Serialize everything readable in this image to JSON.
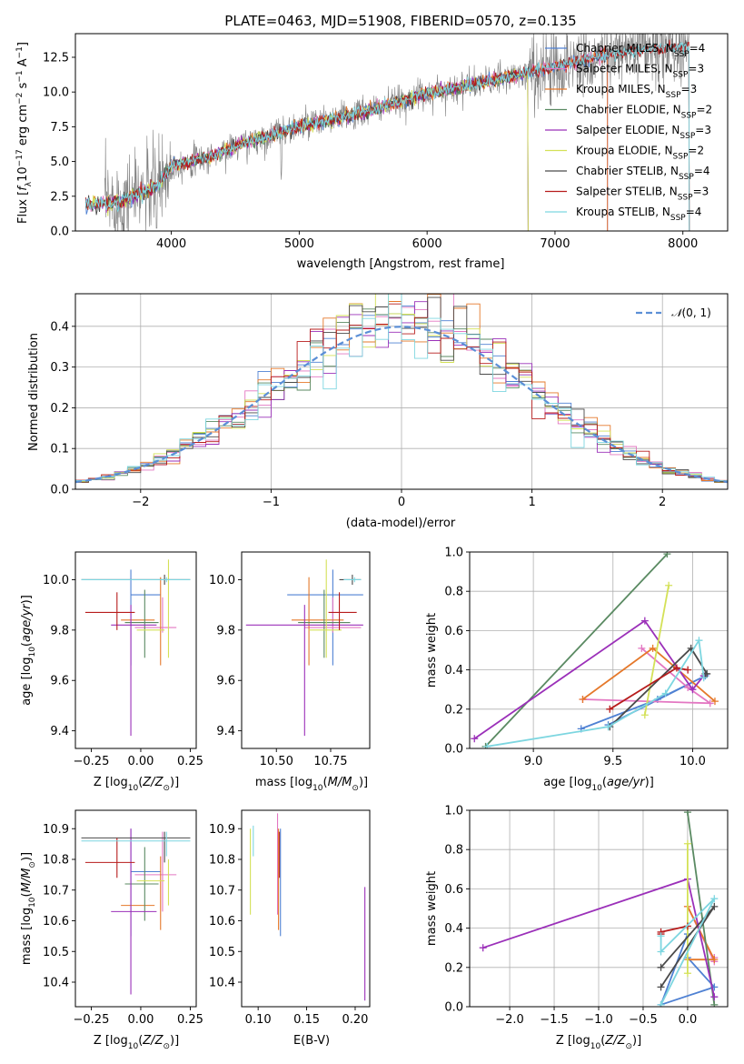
{
  "chart_data": [
    {
      "id": "spectrum",
      "type": "line",
      "title": "PLATE=0463, MJD=51908, FIBERID=0570, z=0.135",
      "xlabel": "wavelength [Angstrom, rest frame]",
      "ylabel": "Flux [f_λ 10^-17 erg cm^-2 s^-1 A^-1]",
      "ylabel_parts": {
        "pre": "Flux [",
        "f": "f",
        "fsub": "λ",
        "ten": "10",
        "e1": "−17",
        "mid1": " erg cm",
        "e2": "−2",
        "mid2": " s",
        "e3": "−1",
        "mid3": " A",
        "e4": "−1",
        "post": "]"
      },
      "xlim": [
        3250,
        8350
      ],
      "ylim": [
        0,
        14.2
      ],
      "xticks": [
        4000,
        5000,
        6000,
        7000,
        8000
      ],
      "yticks": [
        0.0,
        2.5,
        5.0,
        7.5,
        10.0,
        12.5
      ],
      "ytick_labels": [
        "0.0",
        "2.5",
        "5.0",
        "7.5",
        "10.0",
        "12.5"
      ],
      "legend_position": "upper-right",
      "data_color": "#808080",
      "data_trend": {
        "x": [
          3330,
          3600,
          3900,
          4000,
          4300,
          4500,
          5000,
          5500,
          6000,
          6500,
          7000,
          7300,
          7500,
          7800,
          8050
        ],
        "y": [
          1.9,
          2.1,
          3.3,
          4.7,
          5.3,
          6.1,
          7.5,
          8.5,
          9.9,
          10.8,
          11.8,
          12.5,
          12.8,
          13.1,
          13.3
        ]
      },
      "series": [
        {
          "name": "Chabrier MILES",
          "nssp": "4",
          "color": "#4f81d3",
          "xmax": 7410
        },
        {
          "name": "Salpeter MILES",
          "nssp": "3",
          "color": "#e377c2",
          "xmax": 7410
        },
        {
          "name": "Kroupa MILES",
          "nssp": "3",
          "color": "#e5782a",
          "xmax": 7410
        },
        {
          "name": "Chabrier ELODIE",
          "nssp": "2",
          "color": "#5a8a62",
          "xmax": 6790
        },
        {
          "name": "Salpeter ELODIE",
          "nssp": "3",
          "color": "#9b30b9",
          "xmax": 6790
        },
        {
          "name": "Kroupa ELODIE",
          "nssp": "2",
          "color": "#d4e157",
          "xmax": 6790
        },
        {
          "name": "Chabrier STELIB",
          "nssp": "4",
          "color": "#4a4a4a",
          "xmax": 8050
        },
        {
          "name": "Salpeter STELIB",
          "nssp": "3",
          "color": "#b71c1c",
          "xmax": 8050
        },
        {
          "name": "Kroupa STELIB",
          "nssp": "4",
          "color": "#7dd6e0",
          "xmax": 8050
        }
      ]
    },
    {
      "id": "residuals",
      "type": "histogram",
      "xlabel": "(data-model)/error",
      "ylabel": "Normed distribution",
      "xlim": [
        -2.5,
        2.5
      ],
      "ylim": [
        0,
        0.48
      ],
      "xticks": [
        -2,
        -1,
        0,
        1,
        2
      ],
      "xtick_labels": [
        "−2",
        "−1",
        "0",
        "1",
        "2"
      ],
      "yticks": [
        0.0,
        0.1,
        0.2,
        0.3,
        0.4
      ],
      "ytick_labels": [
        "0.0",
        "0.1",
        "0.2",
        "0.3",
        "0.4"
      ],
      "grid": true,
      "bin_width": 0.1,
      "reference": {
        "label": "N(0,1)",
        "label_script": "𝒩",
        "label_args": "(0, 1)",
        "color": "#5b8fd6",
        "style": "dashed"
      },
      "legend_position": "upper-right"
    },
    {
      "id": "age_vs_Z",
      "type": "errorbar",
      "xlabel": "Z [log10(Z/Z⊙)]",
      "ylabel": "age [log10(age/yr)]",
      "xlim": [
        -0.33,
        0.28
      ],
      "ylim": [
        9.33,
        10.11
      ],
      "xticks": [
        -0.25,
        0.0,
        0.25
      ],
      "xtick_labels": [
        "−0.25",
        "0.00",
        "0.25"
      ],
      "yticks": [
        9.4,
        9.6,
        9.8,
        10.0
      ],
      "ytick_labels": [
        "9.4",
        "9.6",
        "9.8",
        "10.0"
      ],
      "points": [
        {
          "color": "#4f81d3",
          "x": [
            -0.05,
            0.1,
            -0.05
          ],
          "y": [
            9.66,
            9.94,
            10.04
          ]
        },
        {
          "color": "#e377c2",
          "x": [
            -0.03,
            0.18,
            0.11
          ],
          "y": [
            9.79,
            9.81,
            9.93
          ]
        },
        {
          "color": "#e5782a",
          "x": [
            -0.1,
            0.07,
            0.1
          ],
          "y": [
            9.66,
            9.84,
            10.01
          ]
        },
        {
          "color": "#5a8a62",
          "x": [
            -0.08,
            0.09,
            0.02
          ],
          "y": [
            9.69,
            9.83,
            9.96
          ]
        },
        {
          "color": "#9b30b9",
          "x": [
            -0.15,
            0.08,
            -0.05
          ],
          "y": [
            9.38,
            9.82,
            9.9
          ]
        },
        {
          "color": "#d4e157",
          "x": [
            -0.02,
            0.12,
            0.14
          ],
          "y": [
            9.69,
            9.8,
            10.08
          ]
        },
        {
          "color": "#4a4a4a",
          "x": [
            -0.3,
            0.25,
            0.12
          ],
          "y": [
            9.98,
            10.0,
            10.02
          ]
        },
        {
          "color": "#b71c1c",
          "x": [
            -0.28,
            -0.03,
            -0.12
          ],
          "y": [
            9.8,
            9.87,
            9.95
          ]
        },
        {
          "color": "#7dd6e0",
          "x": [
            -0.3,
            0.25,
            0.13
          ],
          "y": [
            9.99,
            10.0,
            10.01
          ]
        }
      ]
    },
    {
      "id": "age_vs_mass",
      "type": "errorbar",
      "xlabel": "mass [log10(M/M⊙)]",
      "xlim": [
        10.34,
        10.93
      ],
      "ylim": [
        9.33,
        10.11
      ],
      "xticks": [
        10.5,
        10.75
      ],
      "xtick_labels": [
        "10.50",
        "10.75"
      ],
      "yticks": [
        9.4,
        9.6,
        9.8,
        10.0
      ],
      "ytick_labels": [
        "9.4",
        "9.6",
        "9.8",
        "10.0"
      ],
      "points": [
        {
          "color": "#4f81d3",
          "x": [
            10.55,
            10.9,
            10.76
          ],
          "y": [
            9.66,
            9.94,
            10.04
          ]
        },
        {
          "color": "#e377c2",
          "x": [
            10.63,
            10.89,
            10.76
          ],
          "y": [
            9.79,
            9.81,
            9.93
          ]
        },
        {
          "color": "#e5782a",
          "x": [
            10.57,
            10.81,
            10.65
          ],
          "y": [
            9.66,
            9.84,
            10.01
          ]
        },
        {
          "color": "#5a8a62",
          "x": [
            10.6,
            10.84,
            10.72
          ],
          "y": [
            9.69,
            9.83,
            9.96
          ]
        },
        {
          "color": "#9b30b9",
          "x": [
            10.36,
            10.9,
            10.63
          ],
          "y": [
            9.38,
            9.82,
            9.9
          ]
        },
        {
          "color": "#d4e157",
          "x": [
            10.65,
            10.8,
            10.73
          ],
          "y": [
            9.69,
            9.8,
            10.08
          ]
        },
        {
          "color": "#4a4a4a",
          "x": [
            10.79,
            10.89,
            10.85
          ],
          "y": [
            9.98,
            10.0,
            10.02
          ]
        },
        {
          "color": "#b71c1c",
          "x": [
            10.74,
            10.87,
            10.79
          ],
          "y": [
            9.8,
            9.87,
            9.95
          ]
        },
        {
          "color": "#7dd6e0",
          "x": [
            10.81,
            10.89,
            10.86
          ],
          "y": [
            9.99,
            10.0,
            10.01
          ]
        }
      ]
    },
    {
      "id": "weight_vs_age",
      "type": "line",
      "xlabel": "age [log10(age/yr)]",
      "ylabel": "mass weight",
      "xlim": [
        8.6,
        10.22
      ],
      "ylim": [
        0,
        1.0
      ],
      "xticks": [
        9.0,
        9.5,
        10.0
      ],
      "xtick_labels": [
        "9.0",
        "9.5",
        "10.0"
      ],
      "yticks": [
        0.0,
        0.2,
        0.4,
        0.6,
        0.8,
        1.0
      ],
      "ytick_labels": [
        "0.0",
        "0.2",
        "0.4",
        "0.6",
        "0.8",
        "1.0"
      ],
      "grid": true,
      "series": [
        {
          "color": "#4f81d3",
          "x": [
            9.3,
            9.78,
            10.08,
            9.47
          ],
          "y": [
            0.1,
            0.25,
            0.37,
            0.12
          ]
        },
        {
          "color": "#e377c2",
          "x": [
            9.68,
            9.97,
            10.11,
            9.31
          ],
          "y": [
            0.51,
            0.31,
            0.23,
            0.25
          ]
        },
        {
          "color": "#e5782a",
          "x": [
            9.31,
            9.75,
            10.14
          ],
          "y": [
            0.25,
            0.51,
            0.24
          ]
        },
        {
          "color": "#5a8a62",
          "x": [
            8.7,
            9.84
          ],
          "y": [
            0.01,
            0.99
          ]
        },
        {
          "color": "#9b30b9",
          "x": [
            8.63,
            9.7,
            10.0,
            10.07
          ],
          "y": [
            0.05,
            0.65,
            0.3,
            0.37
          ]
        },
        {
          "color": "#d4e157",
          "x": [
            9.7,
            9.85
          ],
          "y": [
            0.17,
            0.83
          ]
        },
        {
          "color": "#4a4a4a",
          "x": [
            9.48,
            9.99,
            10.09,
            10.08
          ],
          "y": [
            0.11,
            0.51,
            0.38,
            0.38
          ]
        },
        {
          "color": "#b71c1c",
          "x": [
            9.48,
            9.9,
            9.97
          ],
          "y": [
            0.2,
            0.41,
            0.4
          ]
        },
        {
          "color": "#7dd6e0",
          "x": [
            8.71,
            9.47,
            9.83,
            10.04,
            10.07
          ],
          "y": [
            0.01,
            0.11,
            0.28,
            0.55,
            0.36
          ]
        }
      ]
    },
    {
      "id": "mass_vs_Z",
      "type": "errorbar",
      "xlabel": "Z [log10(Z/Z⊙)]",
      "ylabel": "mass [log10(M/M⊙)]",
      "xlim": [
        -0.33,
        0.28
      ],
      "ylim": [
        10.32,
        10.96
      ],
      "xticks": [
        -0.25,
        0.0,
        0.25
      ],
      "xtick_labels": [
        "−0.25",
        "0.00",
        "0.25"
      ],
      "yticks": [
        10.4,
        10.5,
        10.6,
        10.7,
        10.8,
        10.9
      ],
      "ytick_labels": [
        "10.4",
        "10.5",
        "10.6",
        "10.7",
        "10.8",
        "10.9"
      ],
      "points": [
        {
          "color": "#4f81d3",
          "x": [
            -0.05,
            0.1,
            -0.05
          ],
          "y": [
            10.55,
            10.76,
            10.9
          ]
        },
        {
          "color": "#e377c2",
          "x": [
            -0.03,
            0.18,
            0.11
          ],
          "y": [
            10.63,
            10.75,
            10.89
          ]
        },
        {
          "color": "#e5782a",
          "x": [
            -0.1,
            0.07,
            0.1
          ],
          "y": [
            10.57,
            10.65,
            10.81
          ]
        },
        {
          "color": "#5a8a62",
          "x": [
            -0.08,
            0.09,
            0.02
          ],
          "y": [
            10.6,
            10.72,
            10.84
          ]
        },
        {
          "color": "#9b30b9",
          "x": [
            -0.15,
            0.08,
            -0.05
          ],
          "y": [
            10.36,
            10.63,
            10.9
          ]
        },
        {
          "color": "#d4e157",
          "x": [
            -0.02,
            0.12,
            0.14
          ],
          "y": [
            10.65,
            10.73,
            10.8
          ]
        },
        {
          "color": "#4a4a4a",
          "x": [
            -0.3,
            0.25,
            0.12
          ],
          "y": [
            10.79,
            10.87,
            10.89
          ]
        },
        {
          "color": "#b71c1c",
          "x": [
            -0.28,
            -0.03,
            -0.12
          ],
          "y": [
            10.74,
            10.79,
            10.87
          ]
        },
        {
          "color": "#7dd6e0",
          "x": [
            -0.3,
            0.25,
            0.13
          ],
          "y": [
            10.81,
            10.86,
            10.89
          ]
        }
      ]
    },
    {
      "id": "mass_vs_ebv",
      "type": "errorbar",
      "xlabel": "E(B-V)",
      "xlim": [
        0.083,
        0.215
      ],
      "ylim": [
        10.32,
        10.96
      ],
      "xticks": [
        0.1,
        0.15,
        0.2
      ],
      "xtick_labels": [
        "0.10",
        "0.15",
        "0.20"
      ],
      "yticks": [
        10.4,
        10.5,
        10.6,
        10.7,
        10.8,
        10.9
      ],
      "ytick_labels": [
        "10.4",
        "10.5",
        "10.6",
        "10.7",
        "10.8",
        "10.9"
      ],
      "vlines": [
        {
          "color": "#d4e157",
          "x": 0.092,
          "y": [
            10.62,
            10.9
          ]
        },
        {
          "color": "#7dd6e0",
          "x": 0.095,
          "y": [
            10.81,
            10.91
          ]
        },
        {
          "color": "#e377c2",
          "x": 0.12,
          "y": [
            10.62,
            10.95
          ]
        },
        {
          "color": "#e5782a",
          "x": 0.121,
          "y": [
            10.57,
            10.9
          ]
        },
        {
          "color": "#b71c1c",
          "x": 0.122,
          "y": [
            10.74,
            10.89
          ]
        },
        {
          "color": "#4f81d3",
          "x": 0.123,
          "y": [
            10.55,
            10.9
          ]
        },
        {
          "color": "#9b30b9",
          "x": 0.21,
          "y": [
            10.34,
            10.71
          ]
        }
      ]
    },
    {
      "id": "weight_vs_Z",
      "type": "line",
      "xlabel": "Z [log10(Z/Z⊙)]",
      "ylabel": "mass weight",
      "xlim": [
        -2.45,
        0.45
      ],
      "ylim": [
        0,
        1.0
      ],
      "xticks": [
        -2.0,
        -1.5,
        -1.0,
        -0.5,
        0.0
      ],
      "xtick_labels": [
        "−2.0",
        "−1.5",
        "−1.0",
        "−0.5",
        "0.0"
      ],
      "yticks": [
        0.0,
        0.2,
        0.4,
        0.6,
        0.8,
        1.0
      ],
      "ytick_labels": [
        "0.0",
        "0.2",
        "0.4",
        "0.6",
        "0.8",
        "1.0"
      ],
      "grid": true,
      "series": [
        {
          "color": "#4f81d3",
          "x": [
            0.0,
            0.3,
            -0.3,
            0.0
          ],
          "y": [
            0.25,
            0.1,
            0.01,
            0.37
          ]
        },
        {
          "color": "#e377c2",
          "x": [
            0.0,
            0.3,
            0.3
          ],
          "y": [
            0.51,
            0.23,
            0.25
          ]
        },
        {
          "color": "#e5782a",
          "x": [
            0.0,
            0.3,
            0.0
          ],
          "y": [
            0.51,
            0.24,
            0.24
          ]
        },
        {
          "color": "#5a8a62",
          "x": [
            0.0,
            0.3
          ],
          "y": [
            0.99,
            0.01
          ]
        },
        {
          "color": "#9b30b9",
          "x": [
            -2.3,
            0.0,
            0.3
          ],
          "y": [
            0.3,
            0.65,
            0.05
          ]
        },
        {
          "color": "#d4e157",
          "x": [
            0.0,
            0.0
          ],
          "y": [
            0.17,
            0.83
          ]
        },
        {
          "color": "#4a4a4a",
          "x": [
            -0.3,
            0.3,
            -0.3
          ],
          "y": [
            0.1,
            0.51,
            0.2
          ]
        },
        {
          "color": "#b71c1c",
          "x": [
            -0.3,
            -0.3,
            0.0
          ],
          "y": [
            0.37,
            0.38,
            0.41
          ]
        },
        {
          "color": "#7dd6e0",
          "x": [
            -0.3,
            0.3,
            -0.3,
            -0.3
          ],
          "y": [
            0.01,
            0.55,
            0.28,
            0.36
          ]
        }
      ]
    }
  ]
}
